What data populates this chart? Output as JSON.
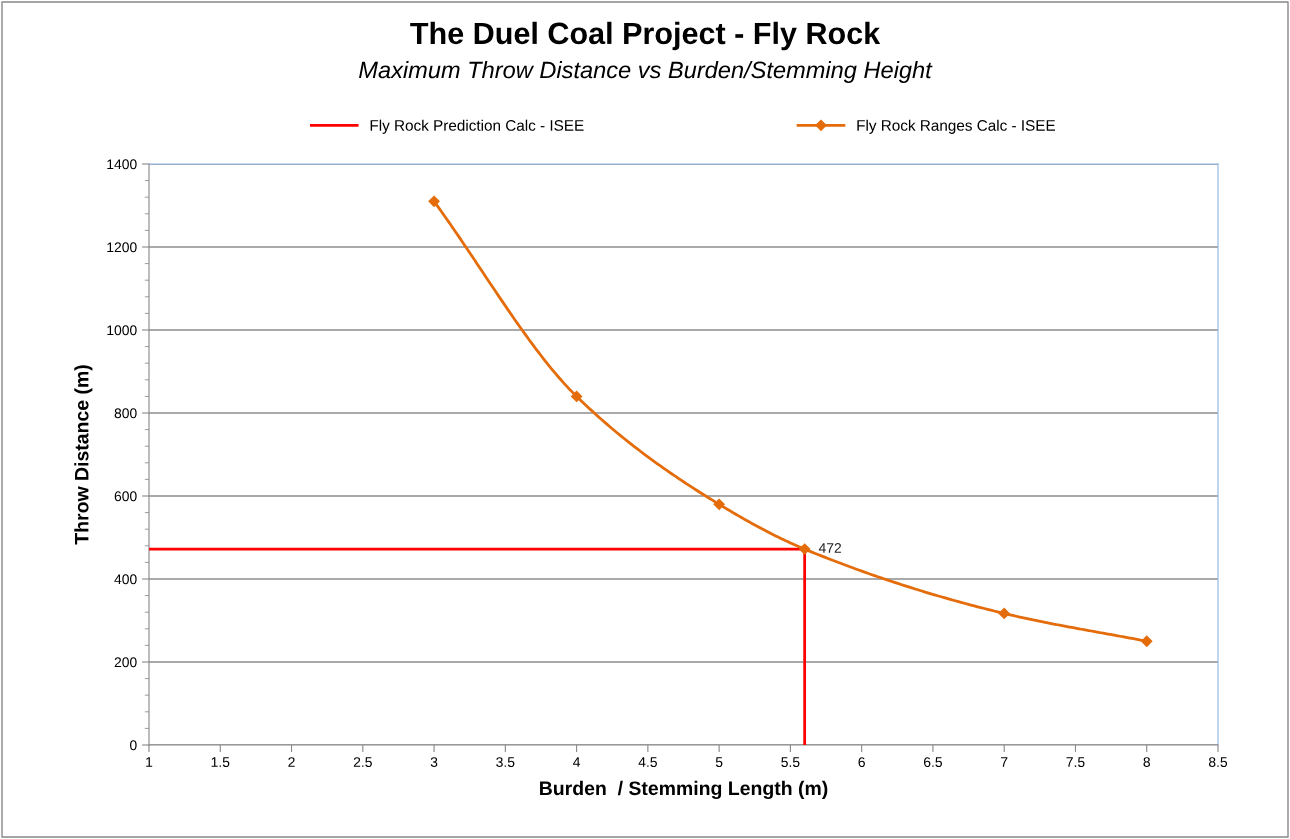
{
  "chart_data": {
    "type": "line",
    "title": "The Duel Coal Project - Fly Rock",
    "subtitle": "Maximum Throw Distance vs Burden/Stemming Height",
    "xlabel": "Burden  / Stemming Length (m)",
    "ylabel": "Throw Distance (m)",
    "series": [
      {
        "name": "Fly Rock Prediction Calc - ISEE",
        "color": "#ff0000",
        "x": [
          1,
          5.6,
          5.6
        ],
        "values": [
          472,
          472,
          0
        ],
        "marker": "none"
      },
      {
        "name": "Fly Rock Ranges Calc - ISEE",
        "color": "#e46c0a",
        "x": [
          3,
          4,
          5,
          5.6,
          7,
          8
        ],
        "values": [
          1310,
          840,
          580,
          472,
          317,
          250
        ],
        "marker": "diamond",
        "value_labels": [
          null,
          null,
          null,
          "472",
          null,
          null
        ]
      }
    ],
    "xlim": [
      1,
      8.5
    ],
    "xticks": [
      1,
      1.5,
      2,
      2.5,
      3,
      3.5,
      4,
      4.5,
      5,
      5.5,
      6,
      6.5,
      7,
      7.5,
      8,
      8.5
    ],
    "ylim": [
      0,
      1400
    ],
    "yticks": [
      0,
      200,
      400,
      600,
      800,
      1000,
      1200,
      1400
    ],
    "grid": "y",
    "legend": "top"
  }
}
